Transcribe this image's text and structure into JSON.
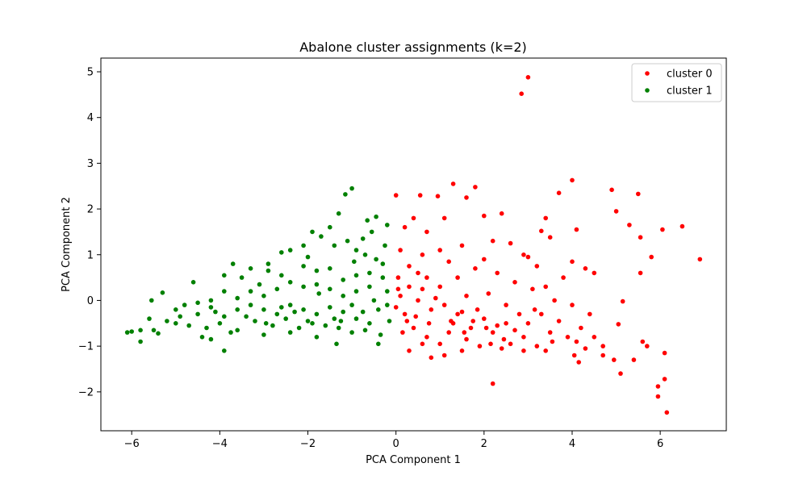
{
  "chart_data": {
    "type": "scatter",
    "title": "Abalone cluster assignments (k=2)",
    "xlabel": "PCA Component 1",
    "ylabel": "PCA Component 2",
    "xlim": [
      -6.7,
      7.5
    ],
    "ylim": [
      -2.85,
      5.3
    ],
    "x_ticks": [
      -6,
      -4,
      -2,
      0,
      2,
      4,
      6
    ],
    "y_ticks": [
      -2,
      -1,
      0,
      1,
      2,
      3,
      4,
      5
    ],
    "grid": false,
    "legend_position": "top-right",
    "series": [
      {
        "name": "cluster 0",
        "color": "#ff0000",
        "points": [
          [
            2.85,
            4.52
          ],
          [
            3.0,
            4.88
          ],
          [
            4.0,
            2.63
          ],
          [
            4.9,
            2.42
          ],
          [
            5.5,
            2.33
          ],
          [
            3.7,
            2.35
          ],
          [
            1.3,
            2.55
          ],
          [
            1.8,
            2.48
          ],
          [
            0.0,
            2.3
          ],
          [
            0.55,
            2.3
          ],
          [
            0.95,
            2.28
          ],
          [
            1.6,
            2.25
          ],
          [
            5.0,
            1.95
          ],
          [
            5.3,
            1.65
          ],
          [
            5.55,
            1.38
          ],
          [
            6.05,
            1.55
          ],
          [
            6.5,
            1.62
          ],
          [
            5.8,
            0.95
          ],
          [
            6.9,
            0.9
          ],
          [
            5.55,
            0.6
          ],
          [
            4.1,
            1.55
          ],
          [
            3.3,
            1.52
          ],
          [
            3.5,
            1.38
          ],
          [
            2.4,
            1.9
          ],
          [
            2.0,
            1.85
          ],
          [
            1.1,
            1.8
          ],
          [
            0.7,
            1.5
          ],
          [
            0.4,
            1.8
          ],
          [
            0.2,
            1.6
          ],
          [
            3.4,
            1.8
          ],
          [
            0.1,
            1.1
          ],
          [
            0.6,
            1.0
          ],
          [
            1.0,
            1.1
          ],
          [
            1.5,
            1.2
          ],
          [
            2.2,
            1.3
          ],
          [
            2.6,
            1.25
          ],
          [
            3.0,
            0.95
          ],
          [
            3.2,
            0.75
          ],
          [
            4.0,
            0.85
          ],
          [
            4.3,
            0.7
          ],
          [
            4.5,
            0.6
          ],
          [
            5.15,
            -0.02
          ],
          [
            5.05,
            -0.52
          ],
          [
            4.95,
            -1.3
          ],
          [
            5.1,
            -1.6
          ],
          [
            5.4,
            -1.3
          ],
          [
            5.6,
            -0.9
          ],
          [
            5.7,
            -1.0
          ],
          [
            6.1,
            -1.15
          ],
          [
            6.1,
            -1.72
          ],
          [
            5.95,
            -1.88
          ],
          [
            5.95,
            -2.1
          ],
          [
            6.15,
            -2.45
          ],
          [
            2.2,
            -1.82
          ],
          [
            0.8,
            -1.25
          ],
          [
            1.1,
            -1.2
          ],
          [
            0.3,
            -1.1
          ],
          [
            0.5,
            0.6
          ],
          [
            0.05,
            0.25
          ],
          [
            0.3,
            0.3
          ],
          [
            0.7,
            0.5
          ],
          [
            1.0,
            0.3
          ],
          [
            1.4,
            0.5
          ],
          [
            1.8,
            0.7
          ],
          [
            2.3,
            0.6
          ],
          [
            2.7,
            0.4
          ],
          [
            3.1,
            0.25
          ],
          [
            3.6,
            0.0
          ],
          [
            4.0,
            -0.1
          ],
          [
            4.4,
            -0.3
          ],
          [
            4.7,
            -1.0
          ],
          [
            4.7,
            -1.2
          ],
          [
            4.2,
            -0.6
          ],
          [
            3.9,
            -0.8
          ],
          [
            3.5,
            -0.7
          ],
          [
            3.2,
            -1.0
          ],
          [
            2.9,
            -0.8
          ],
          [
            2.6,
            -0.95
          ],
          [
            2.3,
            -0.55
          ],
          [
            2.0,
            -0.4
          ],
          [
            1.7,
            -0.6
          ],
          [
            1.4,
            -0.3
          ],
          [
            1.1,
            -0.1
          ],
          [
            0.8,
            -0.2
          ],
          [
            0.5,
            0.0
          ],
          [
            0.2,
            -0.3
          ],
          [
            0.0,
            -0.15
          ],
          [
            0.4,
            -0.6
          ],
          [
            0.7,
            -0.8
          ],
          [
            1.0,
            -0.95
          ],
          [
            1.3,
            -0.5
          ],
          [
            1.6,
            -0.85
          ],
          [
            1.9,
            -1.0
          ],
          [
            2.2,
            -0.7
          ],
          [
            2.5,
            -0.5
          ],
          [
            2.8,
            -0.3
          ],
          [
            3.0,
            -0.5
          ],
          [
            3.3,
            -0.3
          ],
          [
            3.7,
            -0.45
          ],
          [
            4.1,
            -0.9
          ],
          [
            4.5,
            -0.8
          ],
          [
            3.4,
            -1.1
          ],
          [
            2.4,
            -1.05
          ],
          [
            1.5,
            -1.1
          ],
          [
            0.6,
            -0.95
          ],
          [
            0.15,
            -0.7
          ],
          [
            0.9,
            0.05
          ],
          [
            1.6,
            0.1
          ],
          [
            2.1,
            0.15
          ],
          [
            2.5,
            -0.1
          ],
          [
            3.4,
            0.3
          ],
          [
            3.8,
            0.5
          ],
          [
            0.3,
            0.75
          ],
          [
            1.2,
            0.85
          ],
          [
            2.0,
            0.9
          ],
          [
            2.9,
            1.0
          ],
          [
            0.05,
            0.5
          ],
          [
            0.45,
            -0.35
          ],
          [
            1.2,
            -0.7
          ],
          [
            1.85,
            -0.2
          ],
          [
            2.7,
            -0.65
          ],
          [
            3.55,
            -0.9
          ],
          [
            4.3,
            -1.05
          ],
          [
            0.6,
            0.25
          ],
          [
            1.5,
            -0.25
          ],
          [
            2.9,
            -1.1
          ],
          [
            4.15,
            -1.35
          ],
          [
            4.05,
            -1.2
          ],
          [
            3.15,
            -0.2
          ],
          [
            0.1,
            0.1
          ],
          [
            0.25,
            -0.45
          ],
          [
            0.75,
            -0.5
          ],
          [
            1.25,
            -0.45
          ],
          [
            1.75,
            -0.45
          ],
          [
            2.15,
            -0.95
          ],
          [
            2.45,
            -0.85
          ],
          [
            2.05,
            -0.6
          ],
          [
            1.55,
            -0.7
          ]
        ]
      },
      {
        "name": "cluster 1",
        "color": "#008000",
        "points": [
          [
            -1.0,
            2.45
          ],
          [
            -1.15,
            2.32
          ],
          [
            -0.45,
            1.83
          ],
          [
            -0.65,
            1.75
          ],
          [
            -0.55,
            1.5
          ],
          [
            -0.2,
            1.65
          ],
          [
            -1.3,
            1.9
          ],
          [
            -1.5,
            1.6
          ],
          [
            -1.7,
            1.4
          ],
          [
            -1.9,
            1.5
          ],
          [
            -2.1,
            1.2
          ],
          [
            -2.4,
            1.1
          ],
          [
            -1.1,
            1.3
          ],
          [
            -0.9,
            1.1
          ],
          [
            -0.7,
            1.0
          ],
          [
            -0.45,
            0.9
          ],
          [
            -0.3,
            0.8
          ],
          [
            -2.6,
            1.05
          ],
          [
            -2.9,
            0.8
          ],
          [
            -3.3,
            0.7
          ],
          [
            -3.5,
            0.5
          ],
          [
            -3.7,
            0.8
          ],
          [
            -3.9,
            0.55
          ],
          [
            -4.6,
            0.4
          ],
          [
            -5.3,
            0.17
          ],
          [
            -5.55,
            0.0
          ],
          [
            -5.0,
            -0.2
          ],
          [
            -4.8,
            -0.1
          ],
          [
            -4.5,
            -0.3
          ],
          [
            -4.2,
            -0.15
          ],
          [
            -3.9,
            -0.35
          ],
          [
            -3.6,
            -0.2
          ],
          [
            -3.3,
            -0.1
          ],
          [
            -3.0,
            -0.2
          ],
          [
            -2.7,
            -0.3
          ],
          [
            -2.4,
            -0.1
          ],
          [
            -2.1,
            -0.2
          ],
          [
            -1.8,
            -0.3
          ],
          [
            -1.5,
            -0.15
          ],
          [
            -1.2,
            -0.25
          ],
          [
            -0.9,
            -0.4
          ],
          [
            -0.6,
            -0.5
          ],
          [
            -0.4,
            -0.2
          ],
          [
            -0.2,
            -0.1
          ],
          [
            -5.0,
            -0.5
          ],
          [
            -4.7,
            -0.55
          ],
          [
            -4.3,
            -0.6
          ],
          [
            -4.0,
            -0.5
          ],
          [
            -3.6,
            -0.65
          ],
          [
            -3.2,
            -0.45
          ],
          [
            -2.8,
            -0.55
          ],
          [
            -2.5,
            -0.4
          ],
          [
            -2.2,
            -0.6
          ],
          [
            -1.9,
            -0.5
          ],
          [
            -1.6,
            -0.55
          ],
          [
            -1.3,
            -0.6
          ],
          [
            -1.0,
            -0.7
          ],
          [
            -0.7,
            -0.65
          ],
          [
            -0.35,
            -0.75
          ],
          [
            -6.1,
            -0.7
          ],
          [
            -6.0,
            -0.68
          ],
          [
            -5.8,
            -0.65
          ],
          [
            -5.5,
            -0.65
          ],
          [
            -5.4,
            -0.72
          ],
          [
            -5.8,
            -0.9
          ],
          [
            -4.4,
            -0.8
          ],
          [
            -4.2,
            -0.85
          ],
          [
            -3.9,
            -1.1
          ],
          [
            -1.35,
            -0.95
          ],
          [
            -0.4,
            -0.95
          ],
          [
            -1.8,
            -0.8
          ],
          [
            -2.4,
            -0.7
          ],
          [
            -3.0,
            -0.75
          ],
          [
            -0.6,
            0.3
          ],
          [
            -0.9,
            0.2
          ],
          [
            -1.2,
            0.1
          ],
          [
            -1.5,
            0.25
          ],
          [
            -1.8,
            0.35
          ],
          [
            -2.1,
            0.3
          ],
          [
            -2.4,
            0.4
          ],
          [
            -2.7,
            0.25
          ],
          [
            -3.0,
            0.1
          ],
          [
            -3.3,
            0.2
          ],
          [
            -3.6,
            0.05
          ],
          [
            -3.9,
            0.2
          ],
          [
            -4.2,
            0.0
          ],
          [
            -4.5,
            -0.05
          ],
          [
            -0.3,
            0.5
          ],
          [
            -0.6,
            0.6
          ],
          [
            -0.9,
            0.55
          ],
          [
            -1.2,
            0.45
          ],
          [
            -1.5,
            0.7
          ],
          [
            -1.8,
            0.65
          ],
          [
            -2.1,
            0.75
          ],
          [
            -2.6,
            0.55
          ],
          [
            -3.1,
            0.35
          ],
          [
            -0.2,
            0.2
          ],
          [
            -0.15,
            -0.45
          ],
          [
            -0.5,
            0.0
          ],
          [
            -1.0,
            -0.1
          ],
          [
            -1.4,
            -0.4
          ],
          [
            -2.0,
            -0.45
          ],
          [
            -2.6,
            -0.15
          ],
          [
            -3.4,
            -0.35
          ],
          [
            -4.1,
            -0.25
          ],
          [
            -4.9,
            -0.35
          ],
          [
            -5.6,
            -0.4
          ],
          [
            -5.2,
            -0.45
          ],
          [
            -0.25,
            1.2
          ],
          [
            -0.75,
            1.35
          ],
          [
            -1.4,
            1.2
          ],
          [
            -2.0,
            0.95
          ],
          [
            -2.9,
            0.65
          ],
          [
            -0.95,
            0.85
          ],
          [
            -1.75,
            0.15
          ],
          [
            -2.95,
            -0.5
          ],
          [
            -3.75,
            -0.7
          ],
          [
            -0.75,
            -0.25
          ],
          [
            -1.25,
            -0.45
          ],
          [
            -2.3,
            -0.25
          ]
        ]
      }
    ]
  }
}
